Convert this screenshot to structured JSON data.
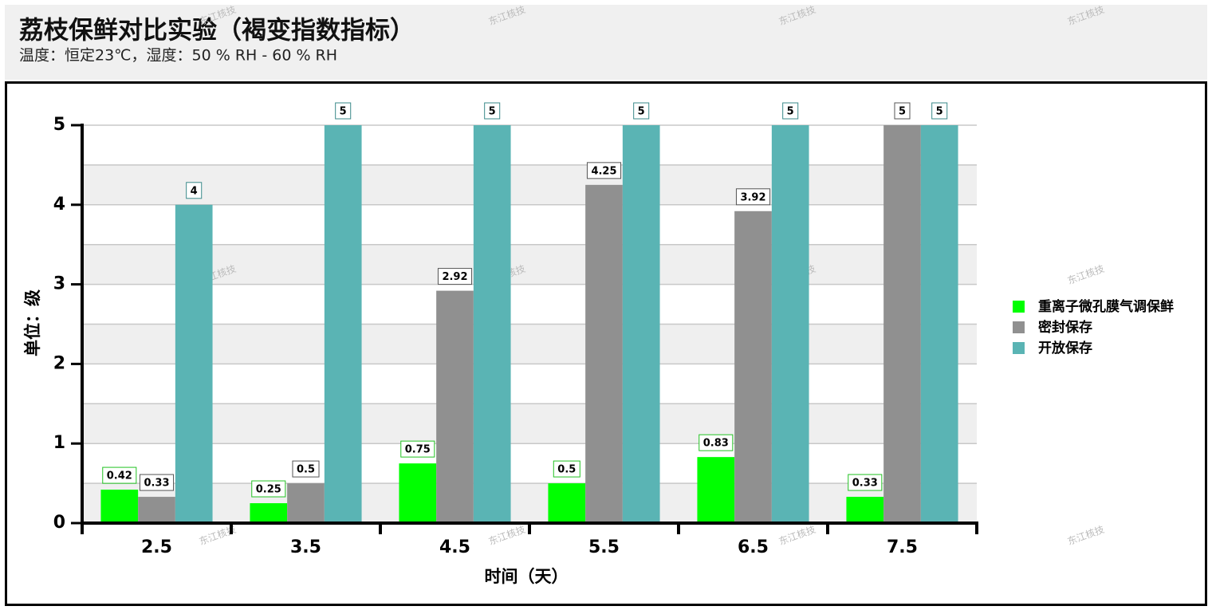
{
  "chart_data": {
    "type": "bar",
    "title": "荔枝保鲜对比实验（褐变指数指标）",
    "subtitle": "温度：恒定23℃，湿度：50 % RH - 60 % RH",
    "x_label": "时间（天）",
    "y_label": "单位：级",
    "watermark": "东江核技",
    "categories": [
      "2.5",
      "3.5",
      "4.5",
      "5.5",
      "6.5",
      "7.5"
    ],
    "series": [
      {
        "name": "重离子微孔膜气调保鲜",
        "color": "#00ff00",
        "label_border": "#22c222",
        "values": [
          0.42,
          0.25,
          0.75,
          0.5,
          0.83,
          0.33
        ]
      },
      {
        "name": "密封保存",
        "color": "#909090",
        "label_border": "#555555",
        "values": [
          0.33,
          0.5,
          2.92,
          4.25,
          3.92,
          5
        ]
      },
      {
        "name": "开放保存",
        "color": "#5ab4b4",
        "label_border": "#3a8a8a",
        "values": [
          4,
          5,
          5,
          5,
          5,
          5
        ]
      }
    ],
    "ylim": [
      0,
      5
    ],
    "yticks": [
      0,
      1,
      2,
      3,
      4,
      5
    ],
    "minor_grid": [
      0.5,
      1.5,
      2.5,
      3.5,
      4.5
    ],
    "grid": true,
    "legend": "right"
  }
}
